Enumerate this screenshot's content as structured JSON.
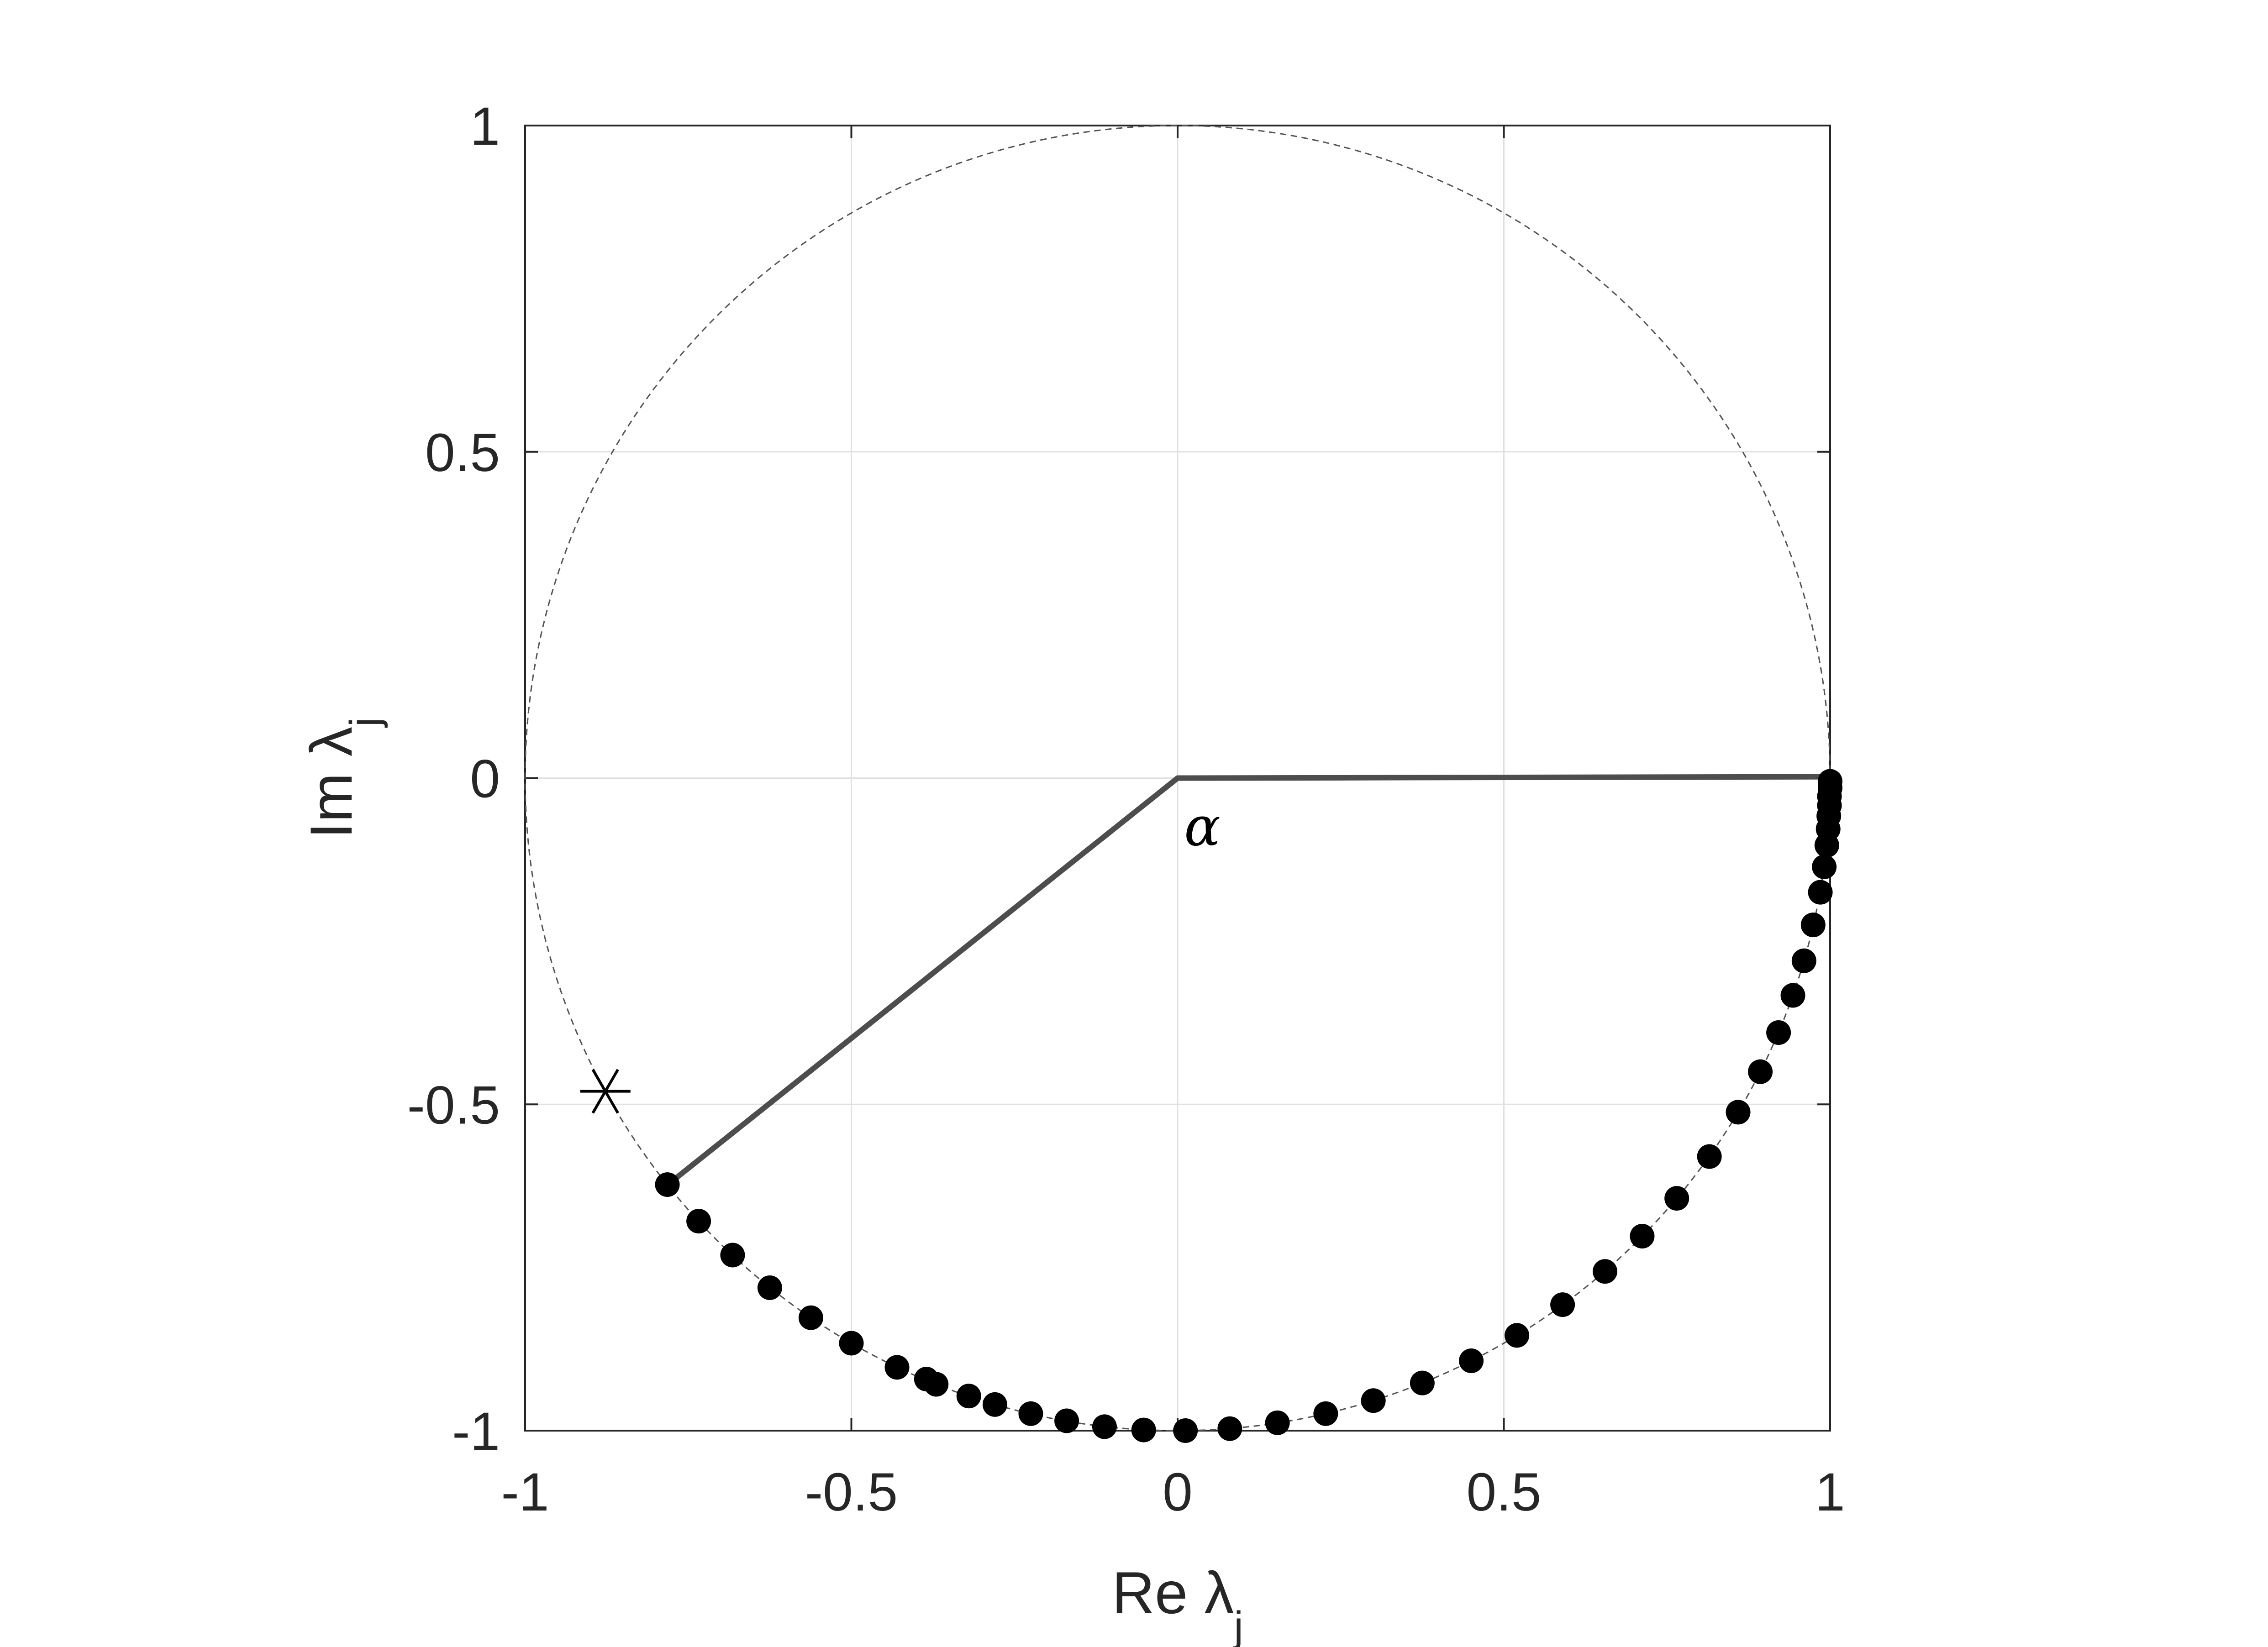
{
  "chart_data": {
    "type": "scatter",
    "xlabel": "Re λj",
    "ylabel": "Im λj",
    "xlabel_parts": {
      "text": "Re ",
      "sym": "λ",
      "sub": "j"
    },
    "ylabel_parts": {
      "text": "Im ",
      "sym": "λ",
      "sub": "j"
    },
    "xlim": [
      -1,
      1
    ],
    "ylim": [
      -1,
      1
    ],
    "xticks": [
      -1,
      -0.5,
      0,
      0.5,
      1
    ],
    "yticks": [
      -1,
      -0.5,
      0,
      0.5,
      1
    ],
    "xtick_labels": [
      "-1",
      "-0.5",
      "0",
      "0.5",
      "1"
    ],
    "ytick_labels": [
      "-1",
      "-0.5",
      "0",
      "0.5",
      "1"
    ],
    "grid": true,
    "aspect": "equal",
    "unit_circle": {
      "center": [
        0,
        0
      ],
      "radius": 1,
      "style": "dashed"
    },
    "points": [
      {
        "x": 1.0,
        "y": -0.005
      },
      {
        "x": 1.0,
        "y": -0.015
      },
      {
        "x": 0.999,
        "y": -0.028
      },
      {
        "x": 0.999,
        "y": -0.042
      },
      {
        "x": 0.998,
        "y": -0.058
      },
      {
        "x": 0.997,
        "y": -0.078
      },
      {
        "x": 0.995,
        "y": -0.103
      },
      {
        "x": 0.991,
        "y": -0.136
      },
      {
        "x": 0.985,
        "y": -0.175
      },
      {
        "x": 0.974,
        "y": -0.225
      },
      {
        "x": 0.96,
        "y": -0.28
      },
      {
        "x": 0.943,
        "y": -0.333
      },
      {
        "x": 0.921,
        "y": -0.39
      },
      {
        "x": 0.893,
        "y": -0.45
      },
      {
        "x": 0.859,
        "y": -0.512
      },
      {
        "x": 0.815,
        "y": -0.58
      },
      {
        "x": 0.765,
        "y": -0.644
      },
      {
        "x": 0.712,
        "y": -0.702
      },
      {
        "x": 0.655,
        "y": -0.756
      },
      {
        "x": 0.59,
        "y": -0.807
      },
      {
        "x": 0.52,
        "y": -0.854
      },
      {
        "x": 0.45,
        "y": -0.893
      },
      {
        "x": 0.375,
        "y": -0.927
      },
      {
        "x": 0.3,
        "y": -0.954
      },
      {
        "x": 0.227,
        "y": -0.974
      },
      {
        "x": 0.153,
        "y": -0.988
      },
      {
        "x": 0.08,
        "y": -0.997
      },
      {
        "x": 0.012,
        "y": -1.0
      },
      {
        "x": -0.052,
        "y": -0.999
      },
      {
        "x": -0.112,
        "y": -0.994
      },
      {
        "x": -0.17,
        "y": -0.985
      },
      {
        "x": -0.225,
        "y": -0.974
      },
      {
        "x": -0.28,
        "y": -0.96
      },
      {
        "x": -0.32,
        "y": -0.947
      },
      {
        "x": -0.37,
        "y": -0.929
      },
      {
        "x": -0.385,
        "y": -0.921
      },
      {
        "x": -0.43,
        "y": -0.903
      },
      {
        "x": -0.5,
        "y": -0.866
      },
      {
        "x": -0.562,
        "y": -0.827
      },
      {
        "x": -0.625,
        "y": -0.781
      },
      {
        "x": -0.682,
        "y": -0.731
      },
      {
        "x": -0.734,
        "y": -0.679
      },
      {
        "x": -0.782,
        "y": -0.623
      }
    ],
    "star": {
      "x": -0.877,
      "y": -0.48
    },
    "angle_lines": [
      {
        "from": [
          0,
          0
        ],
        "to": [
          1.0,
          0.002
        ]
      },
      {
        "from": [
          0,
          0
        ],
        "to": [
          -0.775,
          -0.618
        ]
      }
    ],
    "annotation": {
      "text": "α",
      "x": 0.01,
      "y": -0.075
    },
    "colors": {
      "points": "#000000",
      "angle_lines": "#4d4d4d",
      "axes": "#262626",
      "grid": "#e0e0e0",
      "circle": "#555555"
    }
  }
}
